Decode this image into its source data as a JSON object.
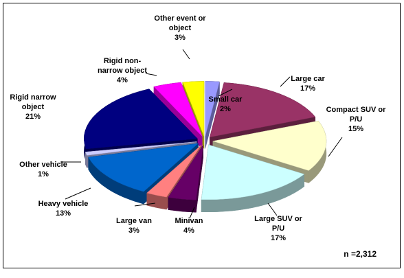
{
  "chart_data": {
    "type": "pie",
    "categories": [
      "Small car",
      "Large car",
      "Compact SUV or\nP/U",
      "Large SUV or\nP/U",
      "Minivan",
      "Large van",
      "Heavy vehicle",
      "Other vehicle",
      "Rigid narrow\nobject",
      "Rigid non-\nnarrow object",
      "Other event or\nobject"
    ],
    "values": [
      2,
      17,
      15,
      17,
      4,
      3,
      13,
      1,
      21,
      4,
      3
    ],
    "value_labels": [
      "2%",
      "17%",
      "15%",
      "17%",
      "4%",
      "3%",
      "13%",
      "1%",
      "21%",
      "4%",
      "3%"
    ],
    "colors": [
      "#9999ff",
      "#993366",
      "#ffffcc",
      "#ccffff",
      "#660066",
      "#ff8080",
      "#0066cc",
      "#ccccff",
      "#000080",
      "#ff00ff",
      "#ffff00"
    ],
    "annotation": "n =2,312"
  }
}
